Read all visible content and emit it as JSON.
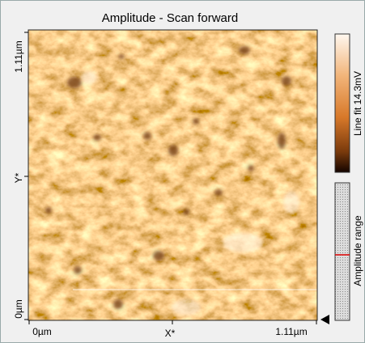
{
  "title": "Amplitude - Scan forward",
  "x_axis": {
    "labels": [
      "0µm",
      "X*",
      "1.11µm"
    ]
  },
  "y_axis": {
    "labels": [
      "1.11µm",
      "Y*",
      "0µm"
    ]
  },
  "colorbar_label": "Line fit 14.3mV",
  "range_label": "Amplitude range"
}
